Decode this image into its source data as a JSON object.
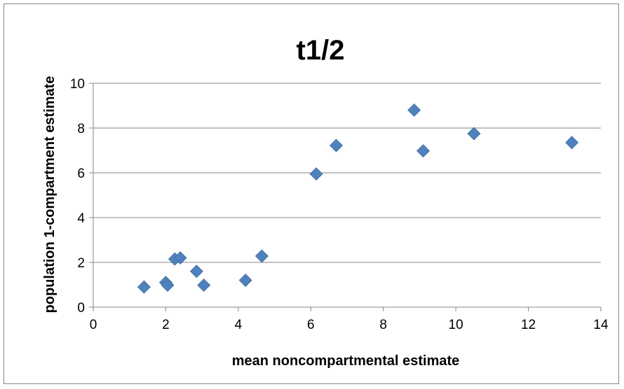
{
  "chart_data": {
    "type": "scatter",
    "title": "t1/2",
    "xlabel": "mean noncompartmental estimate",
    "ylabel": "population  1-compartment estimate",
    "xlim": [
      0,
      14
    ],
    "ylim": [
      0,
      10
    ],
    "xticks": [
      "0",
      "2",
      "4",
      "6",
      "8",
      "10",
      "12",
      "14"
    ],
    "yticks": [
      "0",
      "2",
      "4",
      "6",
      "8",
      "10"
    ],
    "grid": "horizontal",
    "marker": "diamond",
    "color": "#4F81BD",
    "series": [
      {
        "points": [
          {
            "x": 1.4,
            "y": 0.9
          },
          {
            "x": 2.0,
            "y": 1.1
          },
          {
            "x": 2.05,
            "y": 0.98
          },
          {
            "x": 2.25,
            "y": 2.15
          },
          {
            "x": 2.4,
            "y": 2.2
          },
          {
            "x": 2.85,
            "y": 1.6
          },
          {
            "x": 3.05,
            "y": 0.98
          },
          {
            "x": 4.2,
            "y": 1.2
          },
          {
            "x": 4.65,
            "y": 2.28
          },
          {
            "x": 6.15,
            "y": 5.95
          },
          {
            "x": 6.7,
            "y": 7.22
          },
          {
            "x": 8.85,
            "y": 8.8
          },
          {
            "x": 9.1,
            "y": 6.98
          },
          {
            "x": 10.5,
            "y": 7.75
          },
          {
            "x": 13.2,
            "y": 7.35
          }
        ]
      }
    ]
  }
}
